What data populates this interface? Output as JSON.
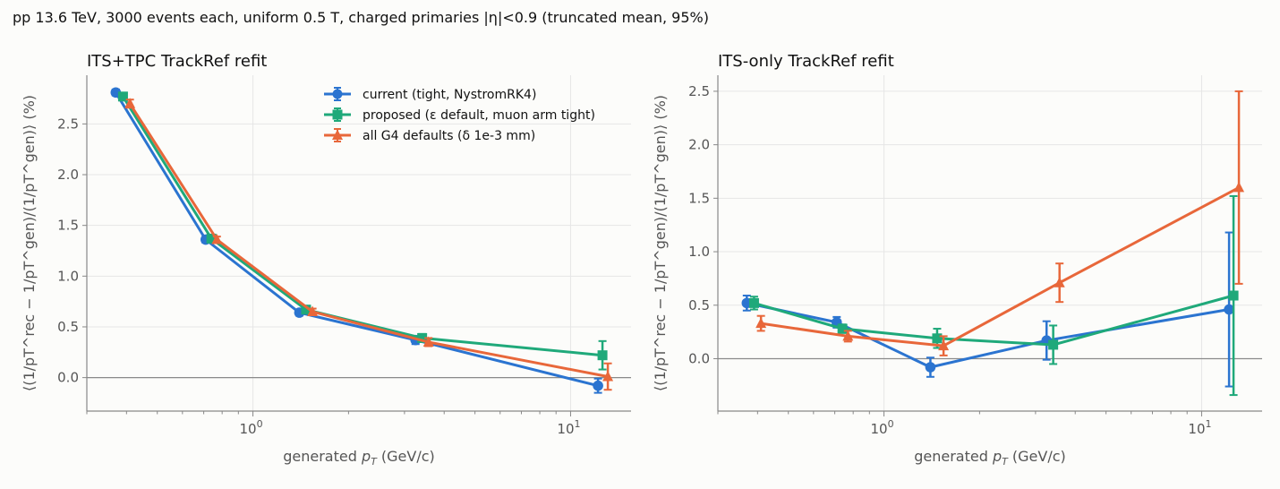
{
  "suptitle": "pp 13.6 TeV, 3000 events each, uniform 0.5 T, charged primaries |η|<0.9 (truncated mean, 95%)",
  "colors": {
    "current": "#2b74d0",
    "proposed": "#1fa97a",
    "defaults": "#e8673a"
  },
  "chart_data": [
    {
      "type": "line",
      "title": "ITS+TPC TrackRef refit",
      "xlabel_prefix": "generated ",
      "xlabel_symbol": "p",
      "xlabel_sub": "T",
      "xlabel_suffix": " (GeV/c)",
      "ylabel": "⟨(1/pT^rec − 1/pT^gen)/(1/pT^gen)⟩ (%)",
      "x_scale": "log",
      "xlim": [
        0.3,
        15.5
      ],
      "ylim": [
        -0.33,
        2.98
      ],
      "yticks": [
        "0.0",
        "0.5",
        "1.0",
        "1.5",
        "2.0",
        "2.5"
      ],
      "xticks": [
        {
          "base": "10",
          "exp": "0"
        },
        {
          "base": "10",
          "exp": "1"
        }
      ],
      "grid": true,
      "legend": "top-right",
      "series": [
        {
          "key": "current",
          "name": "current (tight, NystromRK4)",
          "marker": "circle",
          "x": [
            0.37,
            0.71,
            1.4,
            3.25,
            12.2
          ],
          "y": [
            2.81,
            1.36,
            0.64,
            0.37,
            -0.08
          ],
          "err": [
            0.03,
            0.03,
            0.03,
            0.04,
            0.07
          ]
        },
        {
          "key": "proposed",
          "name": "proposed (ε default, muon arm tight)",
          "marker": "square",
          "x": [
            0.39,
            0.74,
            1.47,
            3.41,
            12.6
          ],
          "y": [
            2.77,
            1.37,
            0.67,
            0.39,
            0.22
          ],
          "err": [
            0.03,
            0.03,
            0.03,
            0.04,
            0.14
          ]
        },
        {
          "key": "defaults",
          "name": "all G4 defaults (δ 1e-3 mm)",
          "marker": "triangle",
          "x": [
            0.41,
            0.77,
            1.54,
            3.57,
            13.1
          ],
          "y": [
            2.7,
            1.36,
            0.65,
            0.35,
            0.01
          ],
          "err": [
            0.04,
            0.03,
            0.03,
            0.04,
            0.13
          ]
        }
      ]
    },
    {
      "type": "line",
      "title": "ITS-only TrackRef refit",
      "xlabel_prefix": "generated ",
      "xlabel_symbol": "p",
      "xlabel_sub": "T",
      "xlabel_suffix": " (GeV/c)",
      "ylabel": "⟨(1/pT^rec − 1/pT^gen)/(1/pT^gen)⟩ (%)",
      "x_scale": "log",
      "xlim": [
        0.3,
        15.5
      ],
      "ylim": [
        -0.49,
        2.65
      ],
      "yticks": [
        "0.0",
        "0.5",
        "1.0",
        "1.5",
        "2.0",
        "2.5"
      ],
      "xticks": [
        {
          "base": "10",
          "exp": "0"
        },
        {
          "base": "10",
          "exp": "1"
        }
      ],
      "grid": true,
      "legend": "none",
      "series": [
        {
          "key": "current",
          "name": "current (tight, NystromRK4)",
          "marker": "circle",
          "x": [
            0.37,
            0.71,
            1.4,
            3.25,
            12.2
          ],
          "y": [
            0.52,
            0.34,
            -0.08,
            0.17,
            0.46
          ],
          "err": [
            0.07,
            0.05,
            0.09,
            0.18,
            0.72
          ]
        },
        {
          "key": "proposed",
          "name": "proposed (ε default, muon arm tight)",
          "marker": "square",
          "x": [
            0.39,
            0.74,
            1.47,
            3.41,
            12.6
          ],
          "y": [
            0.52,
            0.28,
            0.19,
            0.13,
            0.59
          ],
          "err": [
            0.06,
            0.04,
            0.09,
            0.18,
            0.93
          ]
        },
        {
          "key": "defaults",
          "name": "all G4 defaults (δ 1e-3 mm)",
          "marker": "triangle",
          "x": [
            0.41,
            0.77,
            1.54,
            3.57,
            13.1
          ],
          "y": [
            0.33,
            0.21,
            0.12,
            0.71,
            1.6
          ],
          "err": [
            0.07,
            0.05,
            0.09,
            0.18,
            0.9
          ]
        }
      ]
    }
  ]
}
